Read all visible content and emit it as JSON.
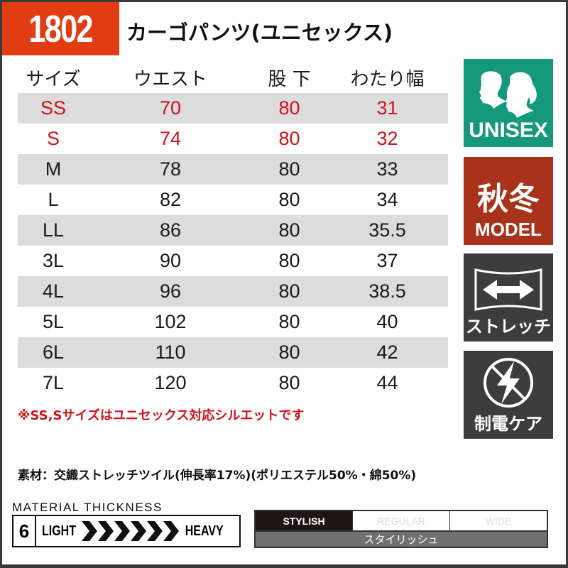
{
  "product": {
    "code": "1802",
    "name": "カーゴパンツ(ユニセックス)"
  },
  "table": {
    "headers": [
      "サイズ",
      "ウエスト",
      "股 下",
      "わたり幅"
    ],
    "rows": [
      {
        "size": "SS",
        "waist": "70",
        "inseam": "80",
        "thigh": "31",
        "highlight": true
      },
      {
        "size": "S",
        "waist": "74",
        "inseam": "80",
        "thigh": "32",
        "highlight": true
      },
      {
        "size": "M",
        "waist": "78",
        "inseam": "80",
        "thigh": "33"
      },
      {
        "size": "L",
        "waist": "82",
        "inseam": "80",
        "thigh": "34"
      },
      {
        "size": "LL",
        "waist": "86",
        "inseam": "80",
        "thigh": "35.5"
      },
      {
        "size": "3L",
        "waist": "90",
        "inseam": "80",
        "thigh": "37"
      },
      {
        "size": "4L",
        "waist": "96",
        "inseam": "80",
        "thigh": "38.5"
      },
      {
        "size": "5L",
        "waist": "102",
        "inseam": "80",
        "thigh": "40"
      },
      {
        "size": "6L",
        "waist": "110",
        "inseam": "80",
        "thigh": "42"
      },
      {
        "size": "7L",
        "waist": "120",
        "inseam": "80",
        "thigh": "44"
      }
    ]
  },
  "note": "※SS,Sサイズはユニセックス対応シルエットです",
  "material": "素材：交織ストレッチツイル(伸長率17%)(ポリエステル50%・綿50%)",
  "badges": {
    "unisex": {
      "label": "UNISEX",
      "icon": "male-female-silhouette-icon",
      "color": "#16987a"
    },
    "season": {
      "title": "秋冬",
      "label": "MODEL",
      "color": "#a8321a"
    },
    "stretch": {
      "label": "ストレッチ",
      "icon": "stretch-arrows-icon"
    },
    "antistatic": {
      "label": "制電ケア",
      "icon": "no-static-icon"
    }
  },
  "thickness": {
    "title": "MATERIAL THICKNESS",
    "value": "6",
    "light": "LIGHT",
    "heavy": "HEAVY",
    "level": 6,
    "max": 6
  },
  "fit": {
    "options": [
      "STYLISH",
      "REGULAR",
      "WIDE"
    ],
    "selected": "STYLISH",
    "selected_jp": "スタイリッシュ"
  }
}
